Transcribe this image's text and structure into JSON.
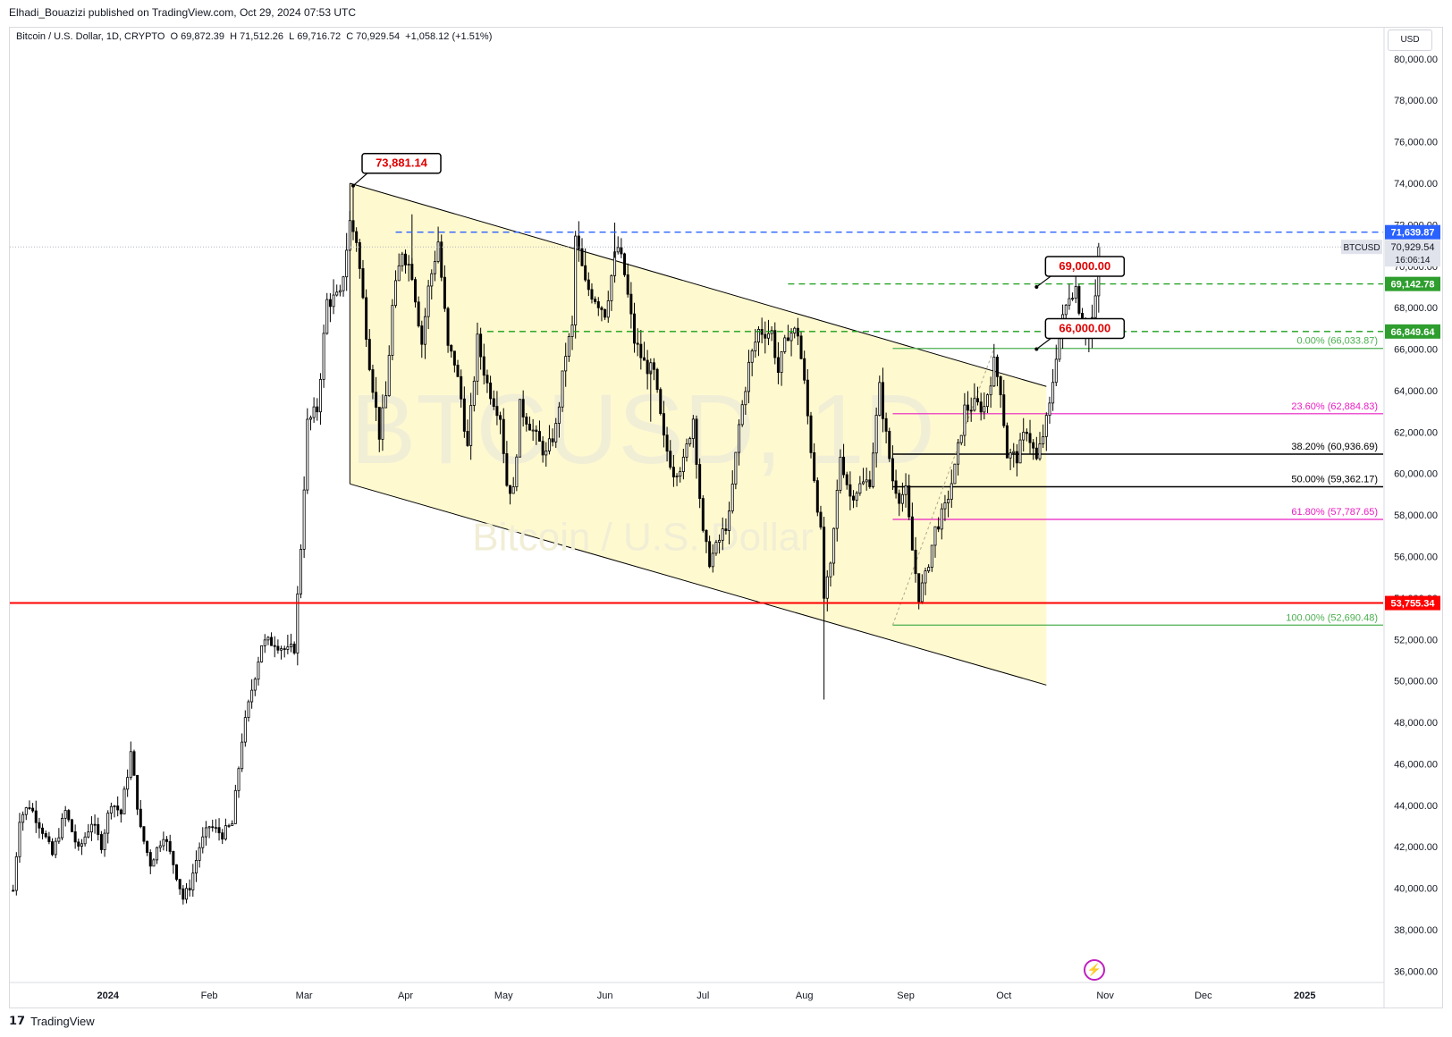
{
  "header": {
    "publisher": "Elhadi_Bouazizi published on TradingView.com, Oct 29, 2024 07:53 UTC"
  },
  "legend": {
    "symbol": "Bitcoin / U.S. Dollar, 1D, CRYPTO",
    "open_label": "O",
    "open": "69,872.39",
    "high_label": "H",
    "high": "71,512.26",
    "low_label": "L",
    "low": "69,716.72",
    "close_label": "C",
    "close": "70,929.54",
    "change": "+1,058.12 (+1.51%)"
  },
  "currency_button": "USD",
  "watermark": {
    "ticker": "BTCUSD, 1D",
    "name": "Bitcoin / U.S. Dollar"
  },
  "footer": {
    "brand": "TradingView",
    "logo_icon": "tradingview-logo-icon"
  },
  "colors": {
    "channel_fill": "#fff9cf",
    "up_candle": "#ffffff",
    "down_candle": "#000000",
    "red_level": "#ff0000",
    "blue_dash": "#2962ff",
    "green_dash": "#1b9e1b",
    "fib_green": "#4caf50",
    "fib_magenta": "#e91ec2",
    "fib_black": "#000000",
    "label_red": "#e00000"
  },
  "chart_data": {
    "type": "candlestick",
    "title": "Bitcoin / U.S. Dollar, 1D, CRYPTO",
    "ylim": [
      35500,
      81500
    ],
    "y_ticks": [
      "80,000.00",
      "78,000.00",
      "76,000.00",
      "74,000.00",
      "72,000.00",
      "70,000.00",
      "68,000.00",
      "66,000.00",
      "64,000.00",
      "62,000.00",
      "60,000.00",
      "58,000.00",
      "56,000.00",
      "54,000.00",
      "52,000.00",
      "50,000.00",
      "48,000.00",
      "46,000.00",
      "44,000.00",
      "42,000.00",
      "40,000.00",
      "38,000.00",
      "36,000.00"
    ],
    "y_tick_values": [
      80000,
      78000,
      76000,
      74000,
      72000,
      70000,
      68000,
      66000,
      64000,
      62000,
      60000,
      58000,
      56000,
      54000,
      52000,
      50000,
      48000,
      46000,
      44000,
      42000,
      40000,
      38000,
      36000
    ],
    "x_ticks": [
      "2024",
      "Feb",
      "Mar",
      "Apr",
      "May",
      "Jun",
      "Jul",
      "Aug",
      "Sep",
      "Oct",
      "Nov",
      "Dec",
      "2025"
    ],
    "x_tick_days": [
      0,
      31,
      60,
      91,
      121,
      152,
      182,
      213,
      244,
      274,
      305,
      335,
      366
    ],
    "x_range_days": [
      -30,
      390
    ],
    "price_key_points": [
      [
        -29,
        39900
      ],
      [
        -27,
        43400
      ],
      [
        -24,
        44000
      ],
      [
        -20,
        42800
      ],
      [
        -17,
        41600
      ],
      [
        -13,
        43700
      ],
      [
        -9,
        41800
      ],
      [
        -5,
        43200
      ],
      [
        -2,
        42100
      ],
      [
        1,
        44200
      ],
      [
        4,
        43600
      ],
      [
        7,
        46500
      ],
      [
        10,
        42800
      ],
      [
        13,
        41200
      ],
      [
        17,
        42600
      ],
      [
        20,
        41200
      ],
      [
        23,
        39500
      ],
      [
        25,
        40100
      ],
      [
        28,
        42000
      ],
      [
        31,
        43000
      ],
      [
        35,
        42600
      ],
      [
        38,
        43100
      ],
      [
        41,
        47200
      ],
      [
        44,
        49600
      ],
      [
        47,
        51800
      ],
      [
        51,
        51900
      ],
      [
        55,
        51400
      ],
      [
        57,
        51600
      ],
      [
        59,
        56500
      ],
      [
        61,
        62400
      ],
      [
        64,
        63100
      ],
      [
        67,
        68300
      ],
      [
        71,
        68500
      ],
      [
        74,
        72100
      ],
      [
        76,
        71300
      ],
      [
        80,
        65400
      ],
      [
        83,
        61900
      ],
      [
        85,
        63700
      ],
      [
        87,
        68000
      ],
      [
        90,
        70800
      ],
      [
        93,
        69700
      ],
      [
        96,
        66300
      ],
      [
        98,
        68900
      ],
      [
        101,
        71200
      ],
      [
        104,
        66000
      ],
      [
        106,
        65400
      ],
      [
        108,
        63600
      ],
      [
        110,
        61200
      ],
      [
        113,
        66400
      ],
      [
        116,
        64300
      ],
      [
        120,
        62800
      ],
      [
        122,
        59500
      ],
      [
        124,
        59100
      ],
      [
        126,
        63200
      ],
      [
        129,
        62400
      ],
      [
        131,
        61700
      ],
      [
        134,
        60900
      ],
      [
        137,
        62200
      ],
      [
        140,
        65800
      ],
      [
        142,
        67000
      ],
      [
        143,
        71400
      ],
      [
        146,
        69100
      ],
      [
        149,
        68500
      ],
      [
        152,
        67800
      ],
      [
        155,
        70400
      ],
      [
        156,
        70900
      ],
      [
        158,
        69600
      ],
      [
        161,
        66400
      ],
      [
        164,
        65300
      ],
      [
        167,
        64800
      ],
      [
        170,
        61600
      ],
      [
        173,
        60100
      ],
      [
        176,
        60500
      ],
      [
        179,
        62700
      ],
      [
        182,
        57000
      ],
      [
        184,
        55800
      ],
      [
        186,
        56400
      ],
      [
        190,
        57900
      ],
      [
        193,
        62300
      ],
      [
        196,
        65200
      ],
      [
        199,
        66900
      ],
      [
        203,
        66800
      ],
      [
        205,
        64900
      ],
      [
        208,
        66800
      ],
      [
        211,
        66800
      ],
      [
        213,
        64300
      ],
      [
        215,
        61200
      ],
      [
        218,
        57100
      ],
      [
        219,
        54000
      ],
      [
        221,
        55400
      ],
      [
        224,
        60900
      ],
      [
        227,
        58900
      ],
      [
        230,
        59400
      ],
      [
        233,
        59700
      ],
      [
        236,
        64100
      ],
      [
        238,
        61800
      ],
      [
        240,
        59700
      ],
      [
        242,
        58900
      ],
      [
        244,
        59100
      ],
      [
        246,
        56300
      ],
      [
        248,
        54100
      ],
      [
        250,
        55000
      ],
      [
        253,
        57300
      ],
      [
        256,
        58300
      ],
      [
        259,
        60200
      ],
      [
        262,
        63100
      ],
      [
        265,
        63300
      ],
      [
        268,
        63200
      ],
      [
        271,
        65300
      ],
      [
        273,
        64100
      ],
      [
        275,
        60900
      ],
      [
        278,
        60800
      ],
      [
        281,
        62200
      ],
      [
        284,
        60600
      ],
      [
        287,
        62500
      ],
      [
        288,
        63200
      ],
      [
        290,
        65800
      ],
      [
        292,
        67400
      ],
      [
        294,
        68700
      ],
      [
        296,
        69000
      ],
      [
        298,
        67100
      ],
      [
        300,
        66600
      ],
      [
        302,
        68300
      ],
      [
        303,
        70929
      ]
    ]
  },
  "drawings": {
    "channel": {
      "upper": [
        [
          74,
          74000
        ],
        [
          287,
          64200
        ]
      ],
      "lower": [
        [
          74,
          59500
        ],
        [
          287,
          49800
        ]
      ],
      "fill_end_day": 287
    },
    "price_callouts": [
      {
        "label": "73,881.14",
        "day": 75,
        "price": 73881.14
      },
      {
        "label": "69,000.00",
        "day": 284,
        "price": 69000
      },
      {
        "label": "66,000.00",
        "day": 284,
        "price": 66000
      }
    ],
    "horizontal_levels": [
      {
        "price": 71639.87,
        "label": "71,639.87",
        "style": "blue-dash",
        "from_day": 88
      },
      {
        "price": 69142.78,
        "label": "69,142.78",
        "style": "green-dash",
        "from_day": 208
      },
      {
        "price": 66849.64,
        "label": "66,849.64",
        "style": "green-dash",
        "from_day": 116
      },
      {
        "price": 53755.34,
        "label": "53,755.34",
        "style": "red-solid",
        "from_day": -30
      }
    ],
    "current_price": {
      "label": "BTCUSD",
      "price_text": "70,929.54",
      "countdown": "16:06:14",
      "price": 70929.54
    },
    "fibonacci": {
      "from_day": 240,
      "to_day": 345,
      "levels": [
        {
          "label": "0.00% (66,033.87)",
          "price": 66033.87,
          "color": "green"
        },
        {
          "label": "23.60% (62,884.83)",
          "price": 62884.83,
          "color": "magenta"
        },
        {
          "label": "38.20% (60,936.69)",
          "price": 60936.69,
          "color": "black"
        },
        {
          "label": "50.00% (59,362.17)",
          "price": 59362.17,
          "color": "black"
        },
        {
          "label": "61.80% (57,787.65)",
          "price": 57787.65,
          "color": "magenta"
        },
        {
          "label": "100.00% (52,690.48)",
          "price": 52690.48,
          "color": "green"
        }
      ]
    }
  }
}
